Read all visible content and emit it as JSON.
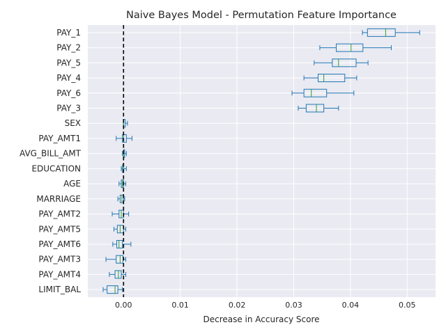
{
  "chart_data": {
    "type": "box",
    "orientation": "horizontal",
    "title": "Naive Bayes Model - Permutation Feature Importance",
    "xlabel": "Decrease in Accuracy Score",
    "ylabel": "",
    "xlim": [
      -0.0063,
      0.055
    ],
    "xticks": [
      "0.00",
      "0.01",
      "0.02",
      "0.03",
      "0.04",
      "0.05"
    ],
    "xtick_values": [
      0,
      0.01,
      0.02,
      0.03,
      0.04,
      0.05
    ],
    "reference_line": {
      "x": 0,
      "style": "dashed",
      "color": "#000000"
    },
    "grid": true,
    "colors": {
      "box": "#1f77b4",
      "median": "#2ca02c",
      "background": "#eaeaf2",
      "grid": "#ffffff"
    },
    "features": [
      {
        "name": "PAY_1",
        "whisker_low": 0.0421,
        "q1": 0.043,
        "median": 0.0462,
        "q3": 0.0479,
        "whisker_high": 0.0522
      },
      {
        "name": "PAY_2",
        "whisker_low": 0.0346,
        "q1": 0.0375,
        "median": 0.0401,
        "q3": 0.0422,
        "whisker_high": 0.0472
      },
      {
        "name": "PAY_5",
        "whisker_low": 0.0336,
        "q1": 0.0368,
        "median": 0.0379,
        "q3": 0.041,
        "whisker_high": 0.0431
      },
      {
        "name": "PAY_4",
        "whisker_low": 0.0318,
        "q1": 0.0343,
        "median": 0.0353,
        "q3": 0.039,
        "whisker_high": 0.0411
      },
      {
        "name": "PAY_6",
        "whisker_low": 0.0297,
        "q1": 0.0318,
        "median": 0.0331,
        "q3": 0.0358,
        "whisker_high": 0.0406
      },
      {
        "name": "PAY_3",
        "whisker_low": 0.0308,
        "q1": 0.0322,
        "median": 0.034,
        "q3": 0.0353,
        "whisker_high": 0.0379
      },
      {
        "name": "SEX",
        "whisker_low": 0.0,
        "q1": 0.0,
        "median": 0.0,
        "q3": 0.0003,
        "whisker_high": 0.0007
      },
      {
        "name": "PAY_AMT1",
        "whisker_low": -0.0013,
        "q1": -0.0002,
        "median": 0.0,
        "q3": 0.0005,
        "whisker_high": 0.0015
      },
      {
        "name": "AVG_BILL_AMT",
        "whisker_low": -0.0002,
        "q1": 0.0,
        "median": 0.0,
        "q3": 0.0002,
        "whisker_high": 0.0005
      },
      {
        "name": "EDUCATION",
        "whisker_low": -0.0004,
        "q1": -0.0002,
        "median": 0.0,
        "q3": 0.0,
        "whisker_high": 0.0005
      },
      {
        "name": "AGE",
        "whisker_low": -0.0008,
        "q1": -0.0004,
        "median": -0.0002,
        "q3": 0.0,
        "whisker_high": 0.0004
      },
      {
        "name": "MARRIAGE",
        "whisker_low": -0.001,
        "q1": -0.0006,
        "median": -0.0003,
        "q3": 0.0,
        "whisker_high": 0.0002
      },
      {
        "name": "PAY_AMT2",
        "whisker_low": -0.002,
        "q1": -0.0008,
        "median": -0.0004,
        "q3": 0.0,
        "whisker_high": 0.0009
      },
      {
        "name": "PAY_AMT5",
        "whisker_low": -0.0017,
        "q1": -0.0011,
        "median": -0.0006,
        "q3": 0.0,
        "whisker_high": 0.0004
      },
      {
        "name": "PAY_AMT6",
        "whisker_low": -0.0019,
        "q1": -0.0012,
        "median": -0.0008,
        "q3": -0.0002,
        "whisker_high": 0.0013
      },
      {
        "name": "PAY_AMT3",
        "whisker_low": -0.0031,
        "q1": -0.0013,
        "median": -0.0006,
        "q3": -0.0001,
        "whisker_high": 0.0004
      },
      {
        "name": "PAY_AMT4",
        "whisker_low": -0.0025,
        "q1": -0.0015,
        "median": -0.0009,
        "q3": -0.0004,
        "whisker_high": 0.0004
      },
      {
        "name": "LIMIT_BAL",
        "whisker_low": -0.0036,
        "q1": -0.0029,
        "median": -0.0015,
        "q3": -0.001,
        "whisker_high": -0.0002
      }
    ]
  }
}
